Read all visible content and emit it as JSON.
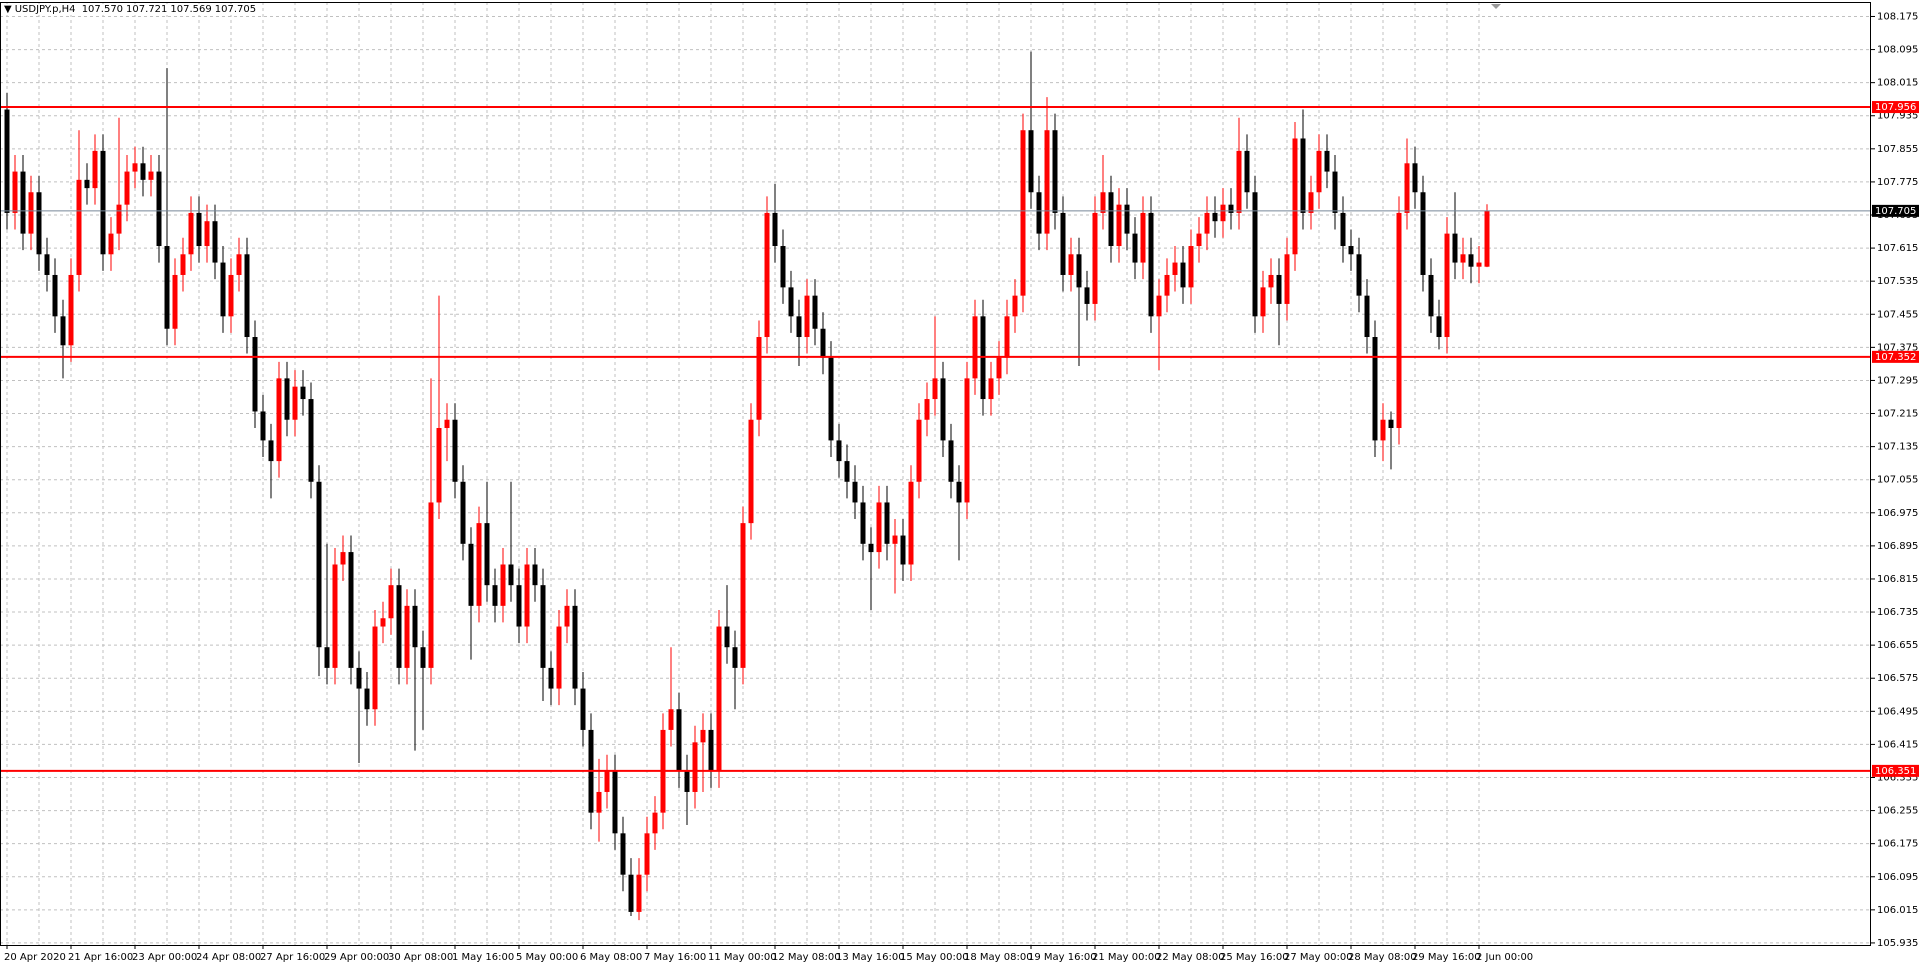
{
  "chart_data": {
    "type": "candlestick",
    "symbol": "USDJPY.p,H4",
    "header_values": [
      "107.570",
      "107.721",
      "107.569",
      "107.705"
    ],
    "categories": [
      "20 Apr 2020",
      null,
      null,
      null,
      null,
      null,
      null,
      null,
      "21 Apr 16:00",
      null,
      null,
      null,
      null,
      null,
      null,
      null,
      "23 Apr 00:00",
      null,
      null,
      null,
      null,
      null,
      null,
      null,
      "24 Apr 08:00",
      null,
      null,
      null,
      null,
      null,
      null,
      null,
      "27 Apr 16:00",
      null,
      null,
      null,
      null,
      null,
      null,
      null,
      "29 Apr 00:00",
      null,
      null,
      null,
      null,
      null,
      null,
      null,
      "30 Apr 08:00",
      null,
      null,
      null,
      null,
      null,
      null,
      null,
      "1 May 16:00",
      null,
      null,
      null,
      null,
      null,
      null,
      null,
      "5 May 00:00",
      null,
      null,
      null,
      null,
      null,
      null,
      null,
      "6 May 08:00",
      null,
      null,
      null,
      null,
      null,
      null,
      null,
      "7 May 16:00",
      null,
      null,
      null,
      null,
      null,
      null,
      null,
      "11 May 00:00",
      null,
      null,
      null,
      null,
      null,
      null,
      null,
      "12 May 08:00",
      null,
      null,
      null,
      null,
      null,
      null,
      null,
      "13 May 16:00",
      null,
      null,
      null,
      null,
      null,
      null,
      null,
      "15 May 00:00",
      null,
      null,
      null,
      null,
      null,
      null,
      null,
      "18 May 08:00",
      null,
      null,
      null,
      null,
      null,
      null,
      null,
      "19 May 16:00",
      null,
      null,
      null,
      null,
      null,
      null,
      null,
      "21 May 00:00",
      null,
      null,
      null,
      null,
      null,
      null,
      null,
      "22 May 08:00",
      null,
      null,
      null,
      null,
      null,
      null,
      null,
      "25 May 16:00",
      null,
      null,
      null,
      null,
      null,
      null,
      null,
      "27 May 00:00",
      null,
      null,
      null,
      null,
      null,
      null,
      null,
      "28 May 08:00",
      null,
      null,
      null,
      null,
      null,
      null,
      null,
      "29 May 16:00",
      null,
      null,
      null,
      null,
      null,
      null,
      null,
      "2 Jun 00:00",
      null
    ],
    "series": [
      {
        "up_color": "#ff0000",
        "down_color": "#000000",
        "open": [
          107.95,
          107.7,
          107.8,
          107.65,
          107.75,
          107.6,
          107.55,
          107.45,
          107.38,
          107.55,
          107.78,
          107.76,
          107.85,
          107.6,
          107.65,
          107.72,
          107.8,
          107.82,
          107.78,
          107.8,
          107.62,
          107.42,
          107.55,
          107.6,
          107.7,
          107.62,
          107.68,
          107.58,
          107.45,
          107.55,
          107.6,
          107.4,
          107.22,
          107.15,
          107.1,
          107.3,
          107.2,
          107.28,
          107.25,
          107.05,
          106.65,
          106.6,
          106.85,
          106.88,
          106.6,
          106.55,
          106.5,
          106.7,
          106.72,
          106.8,
          106.6,
          106.75,
          106.65,
          106.6,
          107.0,
          107.18,
          107.2,
          107.05,
          106.9,
          106.75,
          106.95,
          106.8,
          106.75,
          106.85,
          106.8,
          106.7,
          106.85,
          106.8,
          106.6,
          106.55,
          106.7,
          106.75,
          106.55,
          106.45,
          106.25,
          106.3,
          106.35,
          106.2,
          106.1,
          106.01,
          106.1,
          106.2,
          106.25,
          106.45,
          106.5,
          106.35,
          106.3,
          106.42,
          106.45,
          106.35,
          106.7,
          106.65,
          106.6,
          106.95,
          107.2,
          107.4,
          107.7,
          107.62,
          107.52,
          107.45,
          107.4,
          107.5,
          107.42,
          107.35,
          107.15,
          107.1,
          107.05,
          107.0,
          106.9,
          106.88,
          107.0,
          106.9,
          106.92,
          106.85,
          107.05,
          107.2,
          107.25,
          107.3,
          107.15,
          107.05,
          107.0,
          107.3,
          107.45,
          107.25,
          107.3,
          107.35,
          107.45,
          107.5,
          107.9,
          107.75,
          107.65,
          107.9,
          107.7,
          107.55,
          107.6,
          107.52,
          107.48,
          107.7,
          107.75,
          107.62,
          107.72,
          107.65,
          107.58,
          107.7,
          107.45,
          107.5,
          107.55,
          107.58,
          107.52,
          107.62,
          107.65,
          107.7,
          107.68,
          107.72,
          107.7,
          107.85,
          107.75,
          107.45,
          107.52,
          107.55,
          107.48,
          107.6,
          107.88,
          107.7,
          107.75,
          107.85,
          107.8,
          107.7,
          107.62,
          107.6,
          107.5,
          107.4,
          107.15,
          107.2,
          107.18,
          107.7,
          107.82,
          107.75,
          107.55,
          107.45,
          107.4,
          107.65,
          107.58,
          107.6,
          107.57,
          107.57
        ],
        "high": [
          107.99,
          107.84,
          107.84,
          107.79,
          107.79,
          107.64,
          107.59,
          107.49,
          107.59,
          107.9,
          107.82,
          107.89,
          107.89,
          107.69,
          107.93,
          107.84,
          107.86,
          107.86,
          107.84,
          107.84,
          108.05,
          107.59,
          107.64,
          107.74,
          107.74,
          107.72,
          107.72,
          107.62,
          107.59,
          107.64,
          107.64,
          107.44,
          107.26,
          107.19,
          107.34,
          107.34,
          107.32,
          107.32,
          107.29,
          107.09,
          106.9,
          106.89,
          106.92,
          106.92,
          106.64,
          106.59,
          106.74,
          106.76,
          106.84,
          106.84,
          106.79,
          106.79,
          106.69,
          107.3,
          107.5,
          107.24,
          107.24,
          107.09,
          106.94,
          106.99,
          107.05,
          106.84,
          106.89,
          107.05,
          106.84,
          106.89,
          106.89,
          106.84,
          106.64,
          106.74,
          106.79,
          106.79,
          106.59,
          106.49,
          106.38,
          106.39,
          106.39,
          106.24,
          106.14,
          106.14,
          106.24,
          106.29,
          106.49,
          106.65,
          106.54,
          106.39,
          106.46,
          106.49,
          106.49,
          106.74,
          106.8,
          106.69,
          106.99,
          107.24,
          107.44,
          107.74,
          107.77,
          107.66,
          107.56,
          107.49,
          107.54,
          107.54,
          107.46,
          107.39,
          107.19,
          107.14,
          107.09,
          107.04,
          106.94,
          107.04,
          107.04,
          106.96,
          106.96,
          107.09,
          107.24,
          107.29,
          107.45,
          107.34,
          107.19,
          107.09,
          107.34,
          107.49,
          107.49,
          107.34,
          107.39,
          107.49,
          107.54,
          107.94,
          108.09,
          107.79,
          107.98,
          107.94,
          107.74,
          107.64,
          107.64,
          107.56,
          107.74,
          107.84,
          107.79,
          107.76,
          107.76,
          107.69,
          107.74,
          107.74,
          107.54,
          107.59,
          107.62,
          107.62,
          107.66,
          107.69,
          107.74,
          107.74,
          107.76,
          107.76,
          107.93,
          107.89,
          107.79,
          107.56,
          107.59,
          107.59,
          107.64,
          107.92,
          107.95,
          107.79,
          107.89,
          107.89,
          107.84,
          107.74,
          107.66,
          107.64,
          107.54,
          107.44,
          107.24,
          107.22,
          107.74,
          107.88,
          107.86,
          107.79,
          107.59,
          107.49,
          107.69,
          107.75,
          107.64,
          107.64,
          107.62,
          107.721
        ],
        "low": [
          107.66,
          107.66,
          107.61,
          107.61,
          107.56,
          107.51,
          107.41,
          107.3,
          107.34,
          107.51,
          107.72,
          107.72,
          107.56,
          107.56,
          107.61,
          107.68,
          107.76,
          107.74,
          107.74,
          107.58,
          107.38,
          107.38,
          107.51,
          107.56,
          107.58,
          107.58,
          107.54,
          107.41,
          107.41,
          107.51,
          107.36,
          107.18,
          107.11,
          107.01,
          107.06,
          107.16,
          107.16,
          107.21,
          107.01,
          106.58,
          106.56,
          106.56,
          106.81,
          106.56,
          106.37,
          106.46,
          106.46,
          106.66,
          106.68,
          106.56,
          106.56,
          106.4,
          106.45,
          106.56,
          106.96,
          107.1,
          107.01,
          106.86,
          106.62,
          106.71,
          106.76,
          106.71,
          106.71,
          106.76,
          106.66,
          106.66,
          106.76,
          106.52,
          106.51,
          106.51,
          106.66,
          106.51,
          106.41,
          106.21,
          106.18,
          106.26,
          106.16,
          106.06,
          106.0,
          105.99,
          106.06,
          106.16,
          106.21,
          106.41,
          106.31,
          106.22,
          106.26,
          106.3,
          106.31,
          106.31,
          106.61,
          106.5,
          106.56,
          106.91,
          107.16,
          107.36,
          107.58,
          107.48,
          107.41,
          107.33,
          107.36,
          107.38,
          107.31,
          107.11,
          107.06,
          107.01,
          106.96,
          106.86,
          106.74,
          106.84,
          106.86,
          106.78,
          106.81,
          106.81,
          107.01,
          107.16,
          107.21,
          107.11,
          107.01,
          106.86,
          106.96,
          107.26,
          107.21,
          107.21,
          107.26,
          107.31,
          107.41,
          107.46,
          107.71,
          107.61,
          107.61,
          107.66,
          107.51,
          107.51,
          107.33,
          107.44,
          107.44,
          107.66,
          107.58,
          107.58,
          107.61,
          107.54,
          107.54,
          107.41,
          107.32,
          107.46,
          107.51,
          107.48,
          107.48,
          107.58,
          107.61,
          107.64,
          107.64,
          107.66,
          107.66,
          107.71,
          107.41,
          107.41,
          107.48,
          107.38,
          107.44,
          107.56,
          107.66,
          107.66,
          107.71,
          107.76,
          107.66,
          107.58,
          107.56,
          107.46,
          107.36,
          107.11,
          107.1,
          107.08,
          107.14,
          107.66,
          107.71,
          107.51,
          107.41,
          107.37,
          107.36,
          107.54,
          107.54,
          107.53,
          107.53,
          107.569
        ],
        "close": [
          107.7,
          107.8,
          107.65,
          107.75,
          107.6,
          107.55,
          107.45,
          107.38,
          107.55,
          107.78,
          107.76,
          107.85,
          107.6,
          107.65,
          107.72,
          107.8,
          107.82,
          107.78,
          107.8,
          107.62,
          107.42,
          107.55,
          107.6,
          107.7,
          107.62,
          107.68,
          107.58,
          107.45,
          107.55,
          107.6,
          107.4,
          107.22,
          107.15,
          107.1,
          107.3,
          107.2,
          107.28,
          107.25,
          107.05,
          106.65,
          106.6,
          106.85,
          106.88,
          106.6,
          106.55,
          106.5,
          106.7,
          106.72,
          106.8,
          106.6,
          106.75,
          106.65,
          106.6,
          107.0,
          107.18,
          107.2,
          107.05,
          106.9,
          106.75,
          106.95,
          106.8,
          106.75,
          106.85,
          106.8,
          106.7,
          106.85,
          106.8,
          106.6,
          106.55,
          106.7,
          106.75,
          106.55,
          106.45,
          106.25,
          106.3,
          106.35,
          106.2,
          106.1,
          106.01,
          106.1,
          106.2,
          106.25,
          106.45,
          106.5,
          106.35,
          106.3,
          106.42,
          106.45,
          106.35,
          106.7,
          106.65,
          106.6,
          106.95,
          107.2,
          107.4,
          107.7,
          107.62,
          107.52,
          107.45,
          107.4,
          107.5,
          107.42,
          107.35,
          107.15,
          107.1,
          107.05,
          107.0,
          106.9,
          106.88,
          107.0,
          106.9,
          106.92,
          106.85,
          107.05,
          107.2,
          107.25,
          107.3,
          107.15,
          107.05,
          107.0,
          107.3,
          107.45,
          107.25,
          107.3,
          107.35,
          107.45,
          107.5,
          107.9,
          107.75,
          107.65,
          107.9,
          107.7,
          107.55,
          107.6,
          107.52,
          107.48,
          107.7,
          107.75,
          107.62,
          107.72,
          107.65,
          107.58,
          107.7,
          107.45,
          107.5,
          107.55,
          107.58,
          107.52,
          107.62,
          107.65,
          107.7,
          107.68,
          107.72,
          107.7,
          107.85,
          107.75,
          107.45,
          107.52,
          107.55,
          107.48,
          107.6,
          107.88,
          107.7,
          107.75,
          107.85,
          107.8,
          107.7,
          107.62,
          107.6,
          107.5,
          107.4,
          107.15,
          107.2,
          107.18,
          107.7,
          107.82,
          107.75,
          107.55,
          107.45,
          107.4,
          107.65,
          107.58,
          107.6,
          107.57,
          107.58,
          107.705
        ]
      }
    ],
    "ylim": [
      105.93,
      108.21
    ],
    "yticks": [
      108.175,
      108.095,
      108.015,
      107.935,
      107.855,
      107.775,
      107.695,
      107.615,
      107.535,
      107.455,
      107.375,
      107.295,
      107.215,
      107.135,
      107.055,
      106.975,
      106.895,
      106.815,
      106.735,
      106.655,
      106.575,
      106.495,
      106.415,
      106.335,
      106.255,
      106.175,
      106.095,
      106.015,
      105.935
    ],
    "grid": true,
    "hlines": [
      {
        "value": 107.956,
        "color": "#ff0000"
      },
      {
        "value": 107.352,
        "color": "#ff0000"
      },
      {
        "value": 106.351,
        "color": "#ff0000"
      },
      {
        "value": 107.705,
        "color": "#778899"
      }
    ]
  }
}
